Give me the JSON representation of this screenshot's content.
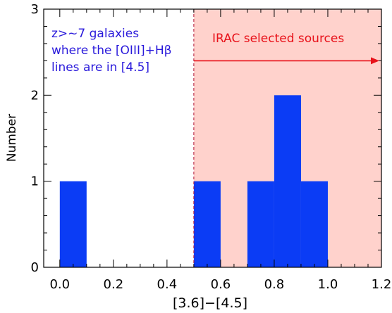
{
  "chart_data": {
    "type": "bar",
    "title": "",
    "xlabel": "[3.6]−[4.5]",
    "ylabel": "Number",
    "xlim": [
      -0.06,
      1.2
    ],
    "ylim": [
      0,
      3
    ],
    "grid": false,
    "x_ticks": [
      {
        "value": 0.0,
        "label": "0.0"
      },
      {
        "value": 0.2,
        "label": "0.2"
      },
      {
        "value": 0.4,
        "label": "0.4"
      },
      {
        "value": 0.6,
        "label": "0.6"
      },
      {
        "value": 0.8,
        "label": "0.8"
      },
      {
        "value": 1.0,
        "label": "1.0"
      },
      {
        "value": 1.2,
        "label": "1.2"
      }
    ],
    "y_ticks": [
      {
        "value": 0,
        "label": "0"
      },
      {
        "value": 1,
        "label": "1"
      },
      {
        "value": 2,
        "label": "2"
      },
      {
        "value": 3,
        "label": "3"
      }
    ],
    "bin_width": 0.1,
    "bins": [
      {
        "x0": 0.0,
        "x1": 0.1,
        "count": 1
      },
      {
        "x0": 0.5,
        "x1": 0.6,
        "count": 1
      },
      {
        "x0": 0.7,
        "x1": 0.8,
        "count": 1
      },
      {
        "x0": 0.8,
        "x1": 0.9,
        "count": 2
      },
      {
        "x0": 0.9,
        "x1": 1.0,
        "count": 1
      }
    ],
    "bar_color": "#0b3cf5",
    "shaded_region": {
      "x0": 0.5,
      "x1": 1.2,
      "color": "#ffd2cc"
    },
    "threshold_line": {
      "x": 0.5,
      "color": "#b01030",
      "style": "dashed"
    },
    "annotations": {
      "left_lines": [
        "z>~7 galaxies",
        "where the [OIII]+Hβ",
        "lines are in [4.5]"
      ],
      "left_color": "#2a1adb",
      "right_label": "IRAC selected sources",
      "right_color": "#e8121a",
      "arrow": {
        "from_x": 0.5,
        "to_x": 1.2,
        "y": 2.4
      }
    }
  }
}
